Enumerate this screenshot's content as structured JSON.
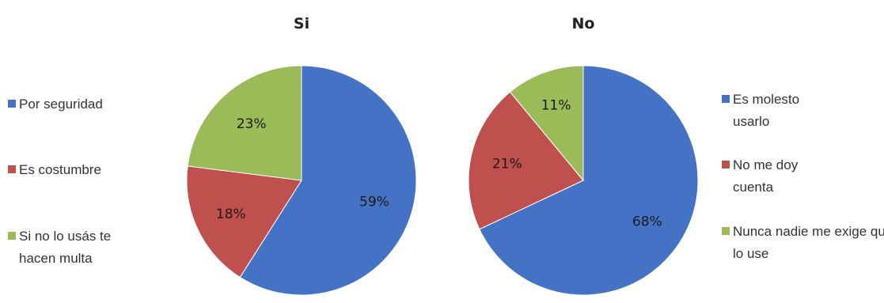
{
  "chart_data": [
    {
      "type": "pie",
      "title": "Si",
      "categories": [
        "Por seguridad",
        "Es costumbre",
        "Si no lo usás te hacen multa"
      ],
      "values": [
        59,
        18,
        23
      ],
      "value_labels": [
        "59%",
        "18%",
        "23%"
      ],
      "colors": [
        "#4472C4",
        "#C0504D",
        "#9BBB59"
      ],
      "legend_position": "left"
    },
    {
      "type": "pie",
      "title": "No",
      "categories": [
        "Es molesto usarlo",
        "No me doy cuenta",
        "Nunca nadie me exige que lo use"
      ],
      "values": [
        68,
        21,
        11
      ],
      "value_labels": [
        "68%",
        "21%",
        "11%"
      ],
      "colors": [
        "#4472C4",
        "#C0504D",
        "#9BBB59"
      ],
      "legend_position": "right"
    }
  ],
  "legend_left": [
    {
      "lines": [
        "Por seguridad"
      ],
      "color": "#4472C4"
    },
    {
      "lines": [
        "Es costumbre"
      ],
      "color": "#C0504D"
    },
    {
      "lines": [
        "Si no lo usás te",
        "hacen multa"
      ],
      "color": "#9BBB59"
    }
  ],
  "legend_right": [
    {
      "lines": [
        "Es molesto",
        "usarlo"
      ],
      "color": "#4472C4"
    },
    {
      "lines": [
        "No me doy",
        "cuenta"
      ],
      "color": "#C0504D"
    },
    {
      "lines": [
        "Nunca nadie me exige que",
        "lo use"
      ],
      "color": "#9BBB59"
    }
  ]
}
